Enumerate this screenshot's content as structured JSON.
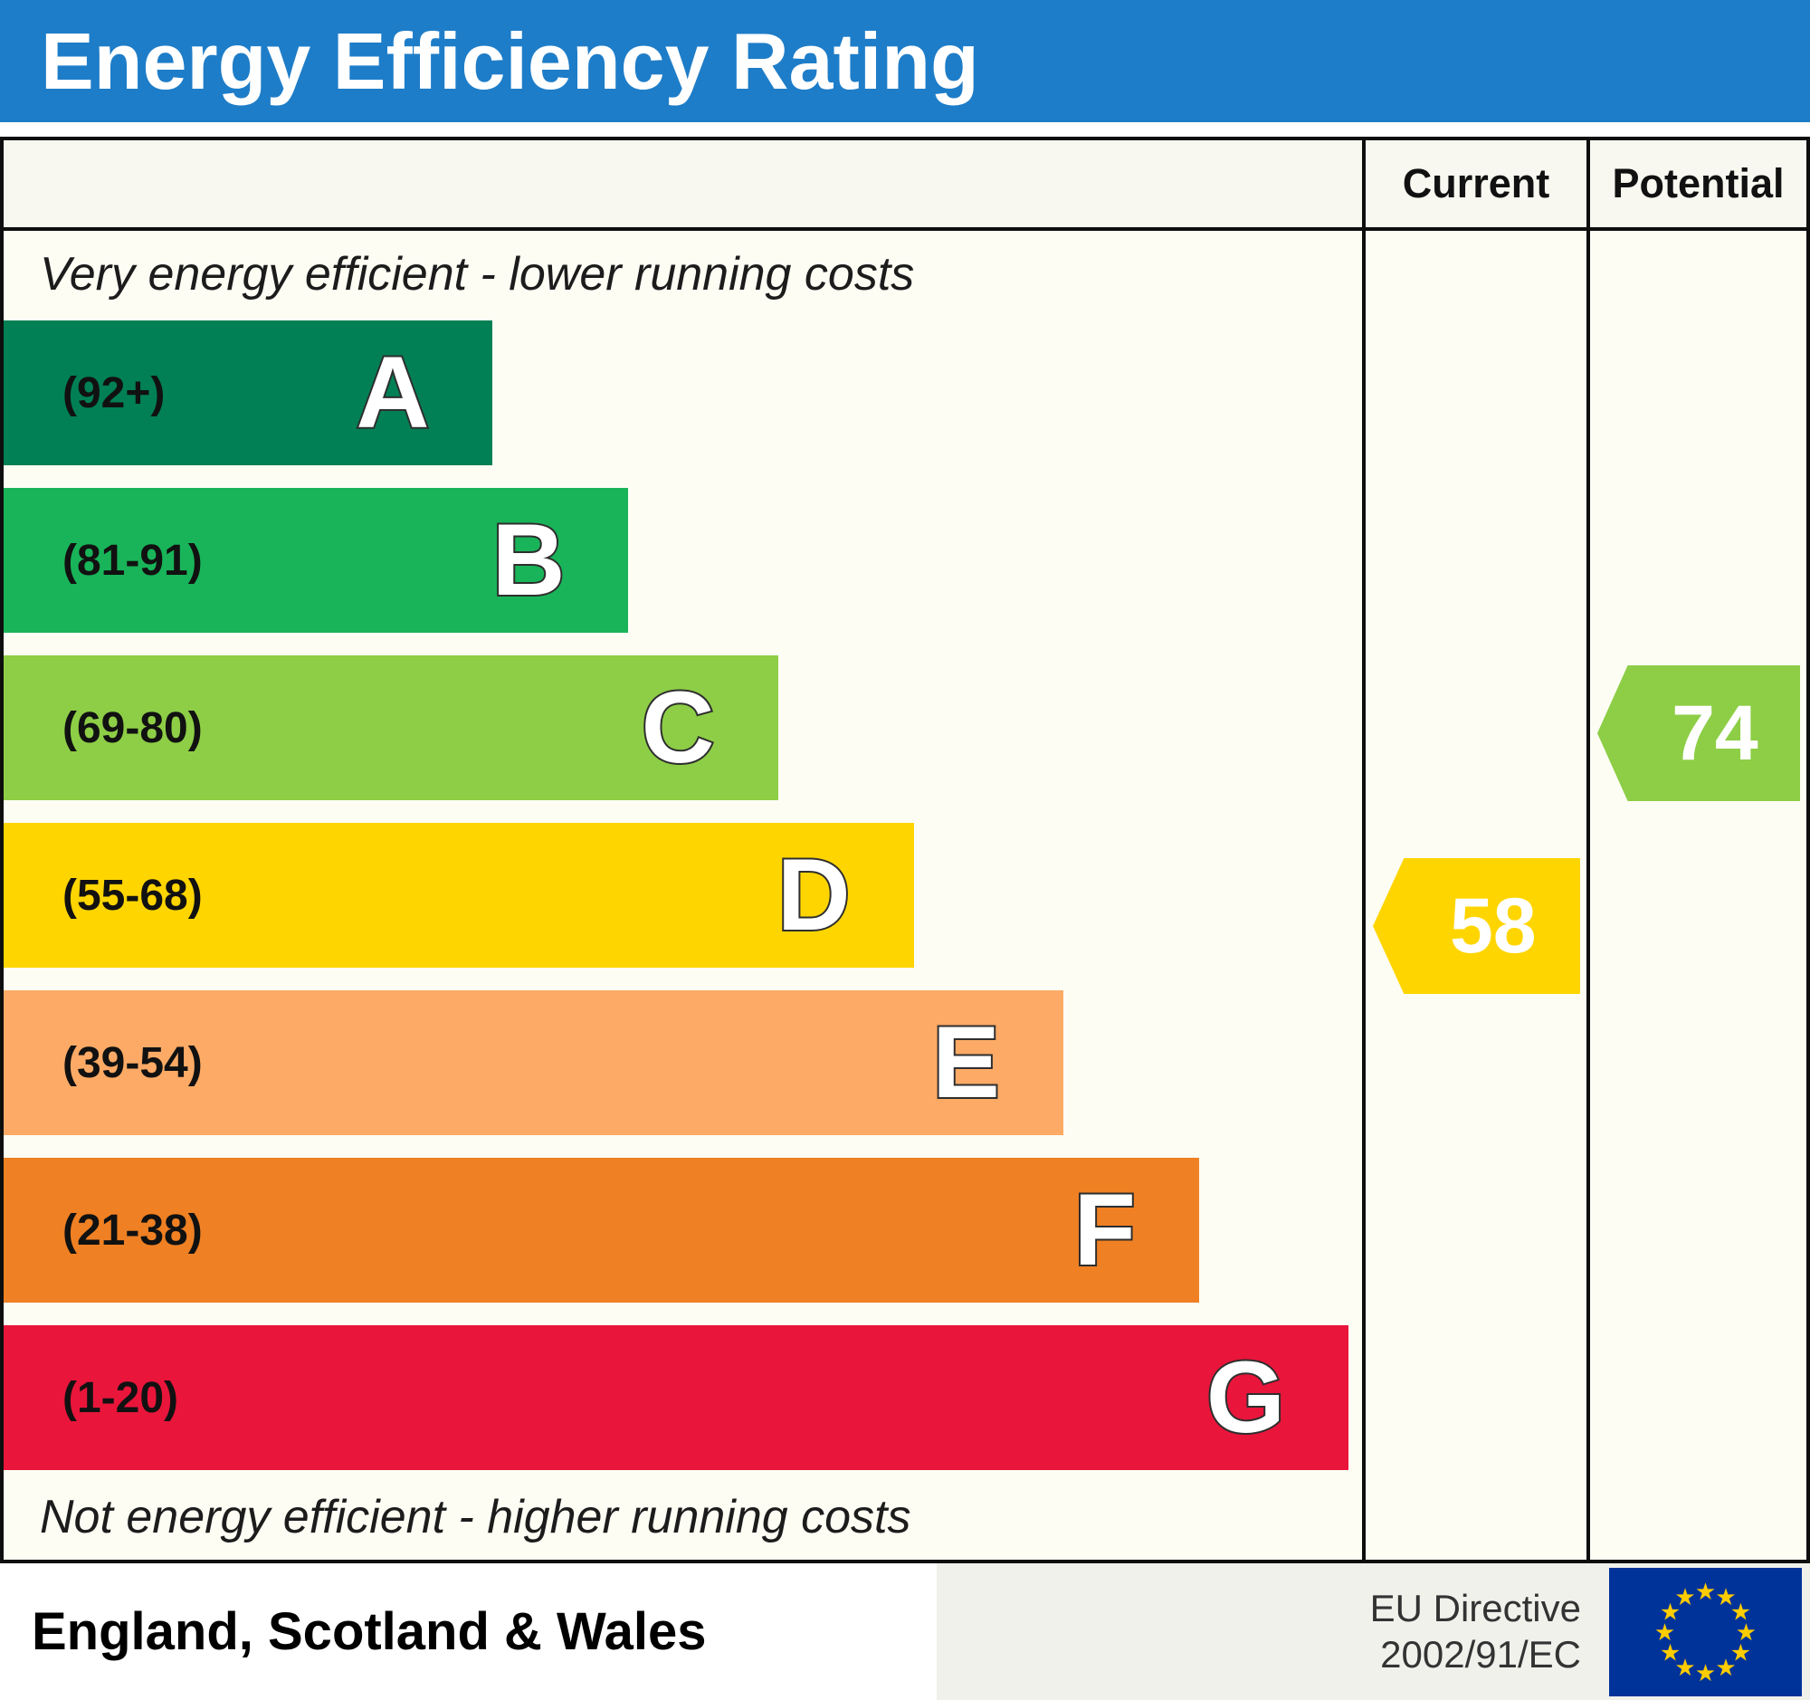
{
  "title": "Energy Efficiency Rating",
  "columns": {
    "current": "Current",
    "potential": "Potential"
  },
  "notes": {
    "top": "Very energy efficient - lower running costs",
    "bottom": "Not energy efficient - higher running costs"
  },
  "footer": {
    "region": "England, Scotland & Wales",
    "directive": [
      "EU Directive",
      "2002/91/EC"
    ],
    "flag_icon": "eu-flag-icon"
  },
  "colors": {
    "header_blue": "#1e7dc8",
    "current_marker": "#ffd500",
    "potential_marker": "#8dce46",
    "eu_flag_blue": "#003399",
    "eu_flag_star": "#ffcc00"
  },
  "chart_data": {
    "type": "bar",
    "title": "Energy Efficiency Rating",
    "region": "England, Scotland & Wales",
    "bands": [
      {
        "letter": "A",
        "range": "(92+)",
        "min": 92,
        "max": 100,
        "color": "#008054",
        "width_pct": 36
      },
      {
        "letter": "B",
        "range": "(81-91)",
        "min": 81,
        "max": 91,
        "color": "#19b459",
        "width_pct": 46
      },
      {
        "letter": "C",
        "range": "(69-80)",
        "min": 69,
        "max": 80,
        "color": "#8dce46",
        "width_pct": 57
      },
      {
        "letter": "D",
        "range": "(55-68)",
        "min": 55,
        "max": 68,
        "color": "#ffd500",
        "width_pct": 67
      },
      {
        "letter": "E",
        "range": "(39-54)",
        "min": 39,
        "max": 54,
        "color": "#fcaa65",
        "width_pct": 78
      },
      {
        "letter": "F",
        "range": "(21-38)",
        "min": 21,
        "max": 38,
        "color": "#ef8023",
        "width_pct": 88
      },
      {
        "letter": "G",
        "range": "(1-20)",
        "min": 1,
        "max": 20,
        "color": "#e9153b",
        "width_pct": 99
      }
    ],
    "current": {
      "value": 58,
      "band": "D",
      "color": "#ffd500"
    },
    "potential": {
      "value": 74,
      "band": "C",
      "color": "#8dce46"
    }
  }
}
